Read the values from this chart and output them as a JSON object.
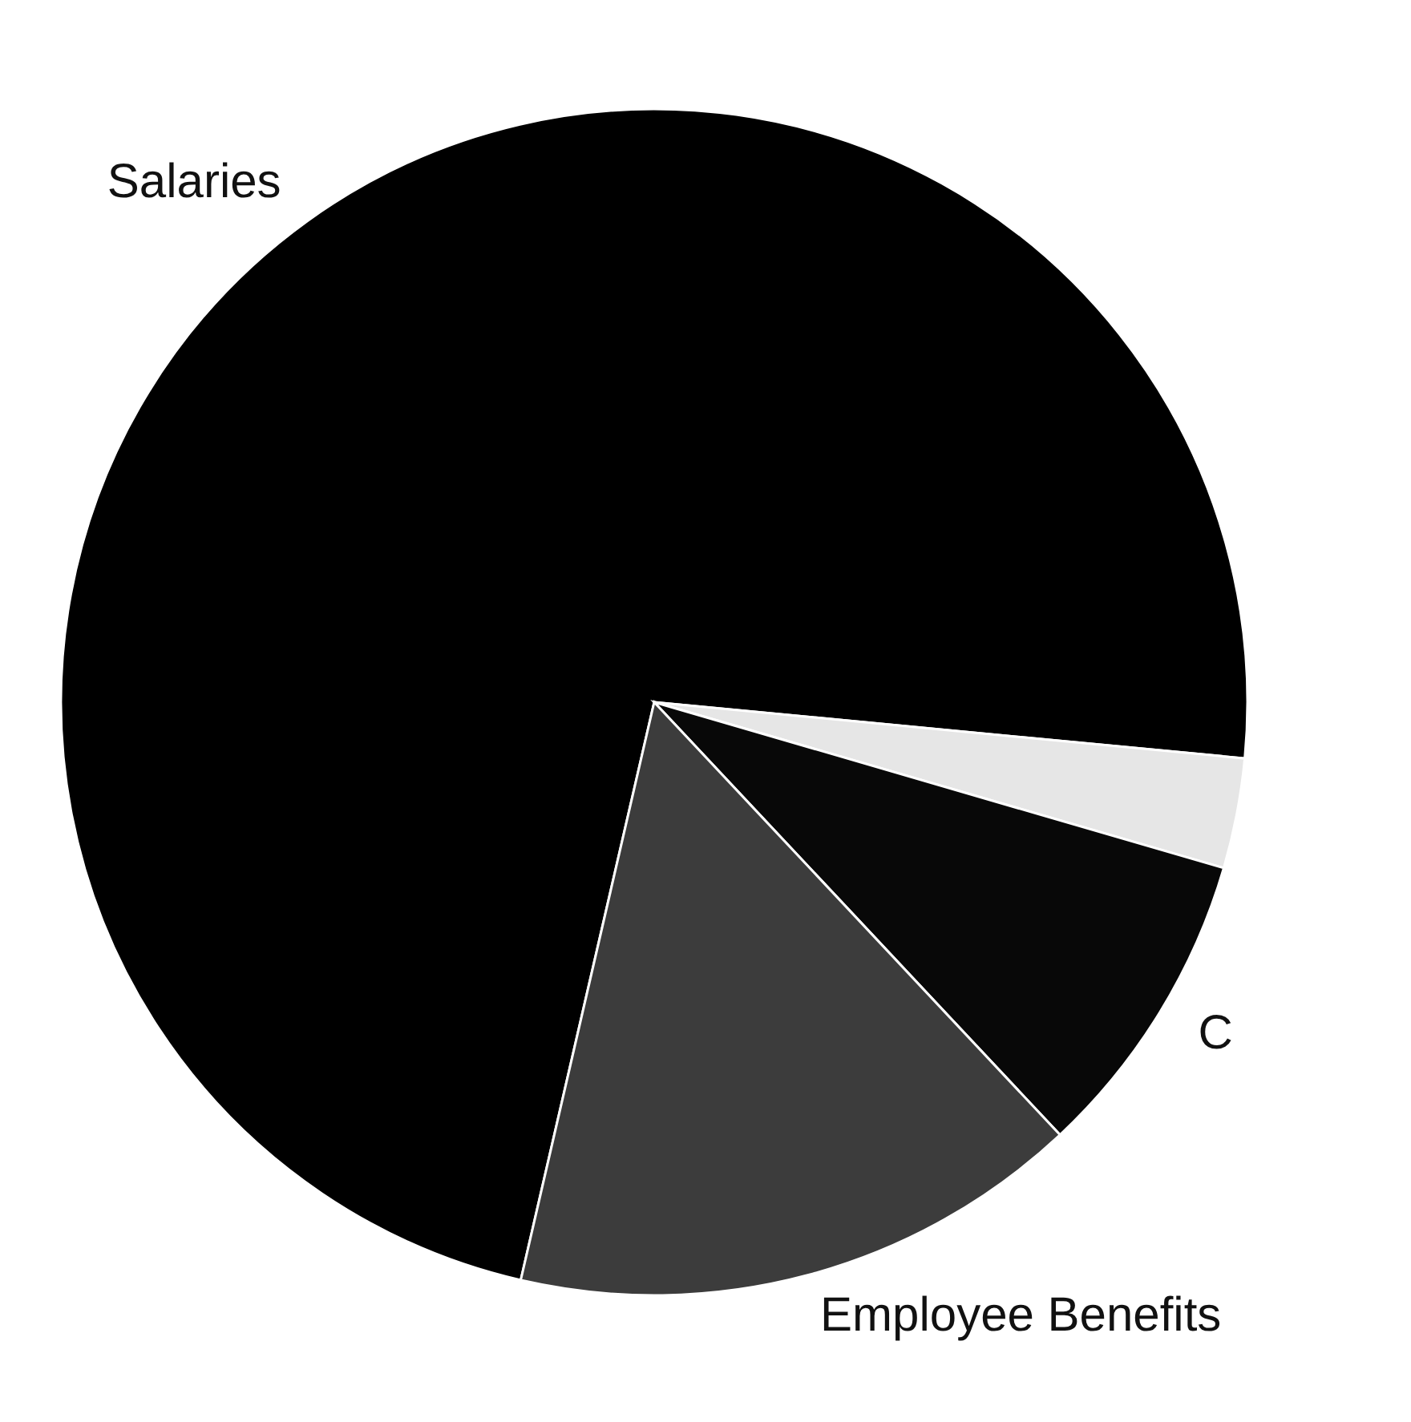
{
  "chart_data": {
    "type": "pie",
    "categories": [
      "Salaries",
      null,
      "C",
      "Employee Benefits"
    ],
    "values": [
      72.9,
      3.0,
      8.5,
      15.6
    ],
    "colors": [
      "#000000",
      "#e6e6e6",
      "#080808",
      "#3c3c3c"
    ]
  }
}
